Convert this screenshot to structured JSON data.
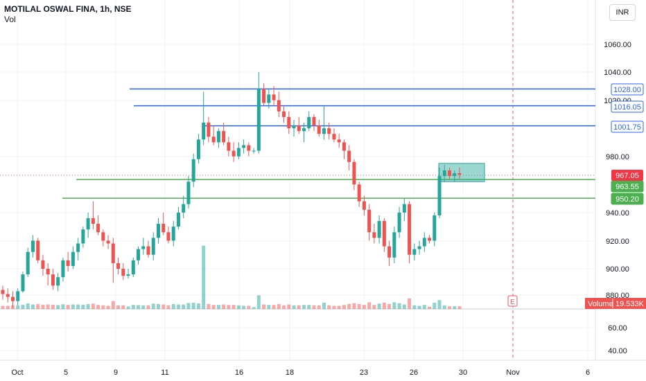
{
  "header": {
    "symbol": "MOTILAL OSWAL FINA, 1h, NSE",
    "volume_label": "Vol",
    "currency": "INR"
  },
  "colors": {
    "up": "#26a69a",
    "down": "#ef5350",
    "blue_line": "#2962ff",
    "green_line": "#4caf50",
    "red_tag": "#f23645",
    "grid": "#f0f3fa",
    "earnings": "#f7525f"
  },
  "chart_data": {
    "type": "candlestick",
    "y_axis": {
      "ticks": [
        "1060.00",
        "1040.00",
        "1020.00",
        "980.00",
        "940.00",
        "920.00",
        "900.00",
        "880.00",
        "60.00",
        "40.00"
      ],
      "price_range": [
        880,
        1070
      ]
    },
    "x_axis": {
      "ticks": [
        "Oct",
        "5",
        "9",
        "11",
        "16",
        "18",
        "23",
        "26",
        "30",
        "Nov",
        "6"
      ]
    },
    "levels": [
      {
        "label": "1028.00",
        "value": 1028.0,
        "color": "#2962ff"
      },
      {
        "label": "1016.05",
        "value": 1016.05,
        "color": "#2962ff"
      },
      {
        "label": "1001.75",
        "value": 1001.75,
        "color": "#2962ff"
      },
      {
        "label": "963.55",
        "value": 963.55,
        "color": "#4caf50"
      },
      {
        "label": "950.20",
        "value": 950.2,
        "color": "#4caf50"
      }
    ],
    "last_price": {
      "label": "967.05",
      "value": 967.05
    },
    "volume_tag": {
      "name": "Volume",
      "value": "19.533K"
    },
    "zone": {
      "top": 975,
      "bottom": 962
    },
    "earnings_marker": "E",
    "candles": [
      [
        885,
        888,
        878,
        882
      ],
      [
        882,
        886,
        876,
        880
      ],
      [
        880,
        884,
        872,
        877
      ],
      [
        877,
        886,
        874,
        884
      ],
      [
        884,
        898,
        883,
        896
      ],
      [
        896,
        915,
        894,
        912
      ],
      [
        912,
        924,
        908,
        920
      ],
      [
        920,
        922,
        904,
        906
      ],
      [
        906,
        910,
        895,
        900
      ],
      [
        900,
        904,
        888,
        896
      ],
      [
        896,
        900,
        885,
        888
      ],
      [
        888,
        897,
        884,
        894
      ],
      [
        894,
        908,
        891,
        906
      ],
      [
        906,
        912,
        898,
        902
      ],
      [
        902,
        916,
        900,
        912
      ],
      [
        912,
        922,
        906,
        918
      ],
      [
        918,
        930,
        915,
        928
      ],
      [
        928,
        940,
        922,
        936
      ],
      [
        936,
        948,
        928,
        932
      ],
      [
        932,
        938,
        924,
        926
      ],
      [
        926,
        928,
        916,
        920
      ],
      [
        920,
        924,
        914,
        918
      ],
      [
        918,
        922,
        890,
        904
      ],
      [
        904,
        908,
        896,
        900
      ],
      [
        900,
        904,
        892,
        895
      ],
      [
        895,
        900,
        893,
        896
      ],
      [
        896,
        908,
        894,
        906
      ],
      [
        906,
        916,
        903,
        914
      ],
      [
        914,
        922,
        910,
        916
      ],
      [
        916,
        920,
        908,
        910
      ],
      [
        910,
        926,
        906,
        922
      ],
      [
        922,
        936,
        918,
        932
      ],
      [
        932,
        940,
        924,
        926
      ],
      [
        926,
        930,
        918,
        920
      ],
      [
        920,
        934,
        916,
        930
      ],
      [
        930,
        944,
        928,
        940
      ],
      [
        940,
        952,
        936,
        946
      ],
      [
        946,
        966,
        943,
        962
      ],
      [
        962,
        982,
        958,
        978
      ],
      [
        978,
        996,
        975,
        992
      ],
      [
        992,
        1026,
        988,
        1004
      ],
      [
        1004,
        1008,
        990,
        994
      ],
      [
        994,
        1002,
        988,
        990
      ],
      [
        990,
        1000,
        986,
        998
      ],
      [
        998,
        1004,
        988,
        990
      ],
      [
        990,
        994,
        980,
        984
      ],
      [
        984,
        990,
        976,
        980
      ],
      [
        980,
        990,
        978,
        986
      ],
      [
        986,
        992,
        982,
        988
      ],
      [
        988,
        990,
        980,
        984
      ],
      [
        984,
        986,
        982,
        984
      ],
      [
        984,
        1040,
        982,
        1028
      ],
      [
        1028,
        1032,
        1016,
        1018
      ],
      [
        1018,
        1028,
        1014,
        1024
      ],
      [
        1024,
        1030,
        1016,
        1020
      ],
      [
        1020,
        1026,
        1008,
        1012
      ],
      [
        1012,
        1016,
        1004,
        1008
      ],
      [
        1008,
        1012,
        996,
        1000
      ],
      [
        1000,
        1006,
        994,
        1002
      ],
      [
        1002,
        1008,
        996,
        998
      ],
      [
        998,
        1004,
        990,
        1000
      ],
      [
        1000,
        1012,
        998,
        1008
      ],
      [
        1008,
        1010,
        998,
        1002
      ],
      [
        1002,
        1006,
        994,
        996
      ],
      [
        996,
        1016,
        992,
        1000
      ],
      [
        1000,
        1004,
        992,
        996
      ],
      [
        996,
        1000,
        990,
        992
      ],
      [
        992,
        996,
        986,
        990
      ],
      [
        990,
        992,
        978,
        984
      ],
      [
        984,
        988,
        970,
        976
      ],
      [
        976,
        978,
        956,
        960
      ],
      [
        960,
        962,
        944,
        948
      ],
      [
        948,
        952,
        938,
        942
      ],
      [
        942,
        946,
        920,
        926
      ],
      [
        926,
        932,
        918,
        922
      ],
      [
        922,
        938,
        918,
        934
      ],
      [
        934,
        936,
        912,
        916
      ],
      [
        916,
        920,
        902,
        908
      ],
      [
        908,
        930,
        904,
        926
      ],
      [
        926,
        944,
        922,
        940
      ],
      [
        940,
        950,
        934,
        946
      ],
      [
        946,
        948,
        904,
        910
      ],
      [
        910,
        918,
        906,
        914
      ],
      [
        914,
        920,
        910,
        916
      ],
      [
        916,
        926,
        912,
        922
      ],
      [
        922,
        924,
        918,
        920
      ],
      [
        920,
        940,
        916,
        938
      ],
      [
        938,
        972,
        936,
        966
      ],
      [
        966,
        974,
        962,
        970
      ],
      [
        970,
        972,
        964,
        966
      ],
      [
        966,
        970,
        962,
        968
      ],
      [
        968,
        972,
        964,
        967
      ]
    ]
  }
}
